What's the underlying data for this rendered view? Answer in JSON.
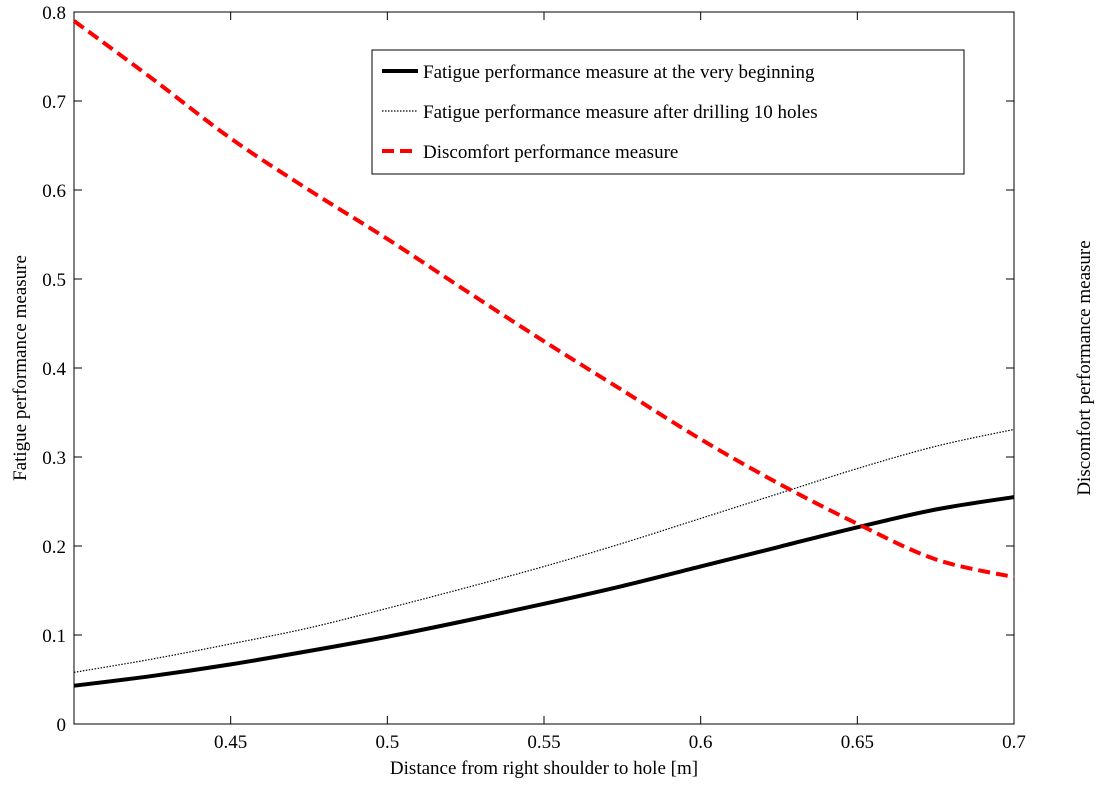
{
  "chart_data": {
    "type": "line",
    "xlabel": "Distance from right shoulder to hole [m]",
    "ylabel": "Fatigue performance measure",
    "y2label": "Discomfort performance measure",
    "xlim": [
      0.4,
      0.7
    ],
    "ylim": [
      0,
      0.8
    ],
    "xticks": [
      0.45,
      0.5,
      0.55,
      0.6,
      0.65,
      0.7
    ],
    "xtick_labels": [
      "0.45",
      "0.5",
      "0.55",
      "0.6",
      "0.65",
      "0.7"
    ],
    "yticks": [
      0,
      0.1,
      0.2,
      0.3,
      0.4,
      0.5,
      0.6,
      0.7,
      0.8
    ],
    "ytick_labels": [
      "0",
      "0.1",
      "0.2",
      "0.3",
      "0.4",
      "0.5",
      "0.6",
      "0.7",
      "0.8"
    ],
    "grid": false,
    "legend_position": "top-right",
    "x": [
      0.4,
      0.425,
      0.45,
      0.475,
      0.5,
      0.525,
      0.55,
      0.575,
      0.6,
      0.625,
      0.65,
      0.675,
      0.7
    ],
    "series": [
      {
        "name": "Fatigue performance measure at the very beginning",
        "color": "#000000",
        "style": "solid-thick",
        "values": [
          0.043,
          0.054,
          0.067,
          0.082,
          0.098,
          0.116,
          0.135,
          0.155,
          0.177,
          0.199,
          0.221,
          0.241,
          0.255
        ]
      },
      {
        "name": "Fatigue performance measure after drilling 10 holes",
        "color": "#000000",
        "style": "dotted",
        "values": [
          0.058,
          0.073,
          0.09,
          0.108,
          0.13,
          0.153,
          0.177,
          0.203,
          0.231,
          0.259,
          0.287,
          0.312,
          0.331
        ]
      },
      {
        "name": "Discomfort performance measure",
        "color": "#ff0000",
        "style": "dashed",
        "values": [
          0.79,
          0.725,
          0.658,
          0.6,
          0.545,
          0.487,
          0.43,
          0.375,
          0.32,
          0.27,
          0.225,
          0.185,
          0.165
        ]
      }
    ]
  }
}
